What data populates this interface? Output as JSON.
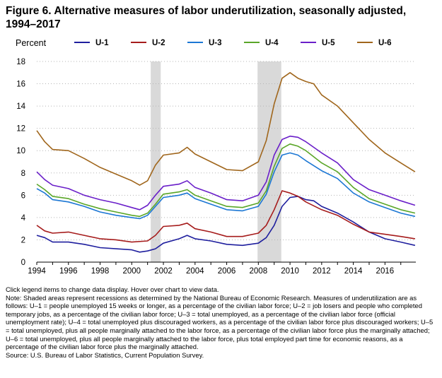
{
  "figure": {
    "title": "Figure 6. Alternative measures of labor underutilization, seasonally adjusted, 1994–2017",
    "ylabel": "Percent"
  },
  "notes": {
    "instructions": "Click legend items to change data display. Hover over chart to view data.",
    "note": "Note: Shaded areas represent recessions as determined by the National Bureau of Economic Research. Measures of underutilization are as follows: U–1 = people unemployed 15 weeks or longer, as a percentage of the civilian labor force; U–2 = job losers and people who completed temporary jobs, as a percentage of the civilian labor force; U–3 = total unemployed, as a percentage of the civilian labor force (official unemployment rate); U–4 = total unemployed plus discouraged workers, as a percentage of the civilian labor force plus discouraged workers; U–5 = total unemployed, plus all people marginally attached to the labor force, as a percentage of the civilian labor force plus the marginally attached; U–6 = total unemployed, plus all people marginally attached to the labor force, plus total employed part time for economic reasons, as a percentage of the civilian labor force plus the marginally attached.",
    "source": "Source: U.S. Bureau of Labor Statistics, Current Population Survey."
  },
  "chart_data": {
    "type": "line",
    "title": "Figure 6. Alternative measures of labor underutilization, seasonally adjusted, 1994–2017",
    "xlabel": "",
    "ylabel": "Percent",
    "xlim": [
      1994,
      2017.95
    ],
    "ylim": [
      0,
      18
    ],
    "yticks": [
      0,
      2,
      4,
      6,
      8,
      10,
      12,
      14,
      16,
      18
    ],
    "xticks": [
      1994,
      1996,
      1998,
      2000,
      2002,
      2004,
      2006,
      2008,
      2010,
      2012,
      2014,
      2016
    ],
    "grid": "horizontal dotted",
    "legend": "top",
    "recessions": [
      [
        2001.2,
        2001.83
      ],
      [
        2007.95,
        2009.45
      ]
    ],
    "series": [
      {
        "name": "U-1",
        "color": "#1f1f9e",
        "points": [
          [
            1994,
            2.4
          ],
          [
            1994.5,
            2.2
          ],
          [
            1995,
            1.8
          ],
          [
            1996,
            1.8
          ],
          [
            1997,
            1.6
          ],
          [
            1998,
            1.3
          ],
          [
            1999,
            1.2
          ],
          [
            2000,
            1.1
          ],
          [
            2000.5,
            0.9
          ],
          [
            2001,
            1.0
          ],
          [
            2001.5,
            1.2
          ],
          [
            2002,
            1.7
          ],
          [
            2003,
            2.1
          ],
          [
            2003.5,
            2.4
          ],
          [
            2004,
            2.1
          ],
          [
            2005,
            1.9
          ],
          [
            2006,
            1.6
          ],
          [
            2007,
            1.5
          ],
          [
            2008,
            1.7
          ],
          [
            2008.5,
            2.2
          ],
          [
            2009,
            3.3
          ],
          [
            2009.5,
            5.0
          ],
          [
            2010,
            5.8
          ],
          [
            2010.5,
            5.9
          ],
          [
            2011,
            5.6
          ],
          [
            2011.5,
            5.5
          ],
          [
            2012,
            5.0
          ],
          [
            2013,
            4.4
          ],
          [
            2014,
            3.6
          ],
          [
            2015,
            2.7
          ],
          [
            2016,
            2.1
          ],
          [
            2017,
            1.8
          ],
          [
            2017.9,
            1.5
          ]
        ]
      },
      {
        "name": "U-2",
        "color": "#a61c1c",
        "points": [
          [
            1994,
            3.3
          ],
          [
            1994.5,
            2.8
          ],
          [
            1995,
            2.6
          ],
          [
            1996,
            2.7
          ],
          [
            1997,
            2.4
          ],
          [
            1998,
            2.1
          ],
          [
            1999,
            2.0
          ],
          [
            2000,
            1.8
          ],
          [
            2001,
            1.9
          ],
          [
            2001.5,
            2.4
          ],
          [
            2002,
            3.2
          ],
          [
            2003,
            3.3
          ],
          [
            2003.5,
            3.5
          ],
          [
            2004,
            3.0
          ],
          [
            2005,
            2.7
          ],
          [
            2006,
            2.3
          ],
          [
            2007,
            2.3
          ],
          [
            2008,
            2.6
          ],
          [
            2008.5,
            3.3
          ],
          [
            2009,
            4.7
          ],
          [
            2009.5,
            6.4
          ],
          [
            2010,
            6.2
          ],
          [
            2010.5,
            5.9
          ],
          [
            2011,
            5.4
          ],
          [
            2012,
            4.7
          ],
          [
            2013,
            4.2
          ],
          [
            2014,
            3.4
          ],
          [
            2015,
            2.7
          ],
          [
            2016,
            2.5
          ],
          [
            2017,
            2.3
          ],
          [
            2017.9,
            2.1
          ]
        ]
      },
      {
        "name": "U-3",
        "color": "#1c77d4",
        "points": [
          [
            1994,
            6.6
          ],
          [
            1994.5,
            6.2
          ],
          [
            1995,
            5.6
          ],
          [
            1996,
            5.4
          ],
          [
            1997,
            5.0
          ],
          [
            1998,
            4.5
          ],
          [
            1999,
            4.2
          ],
          [
            2000,
            4.0
          ],
          [
            2000.5,
            3.9
          ],
          [
            2001,
            4.2
          ],
          [
            2001.5,
            5.0
          ],
          [
            2002,
            5.8
          ],
          [
            2003,
            6.0
          ],
          [
            2003.5,
            6.2
          ],
          [
            2004,
            5.7
          ],
          [
            2005,
            5.2
          ],
          [
            2006,
            4.7
          ],
          [
            2007,
            4.6
          ],
          [
            2008,
            5.0
          ],
          [
            2008.5,
            6.1
          ],
          [
            2009,
            8.1
          ],
          [
            2009.5,
            9.6
          ],
          [
            2010,
            9.8
          ],
          [
            2010.5,
            9.6
          ],
          [
            2011,
            9.1
          ],
          [
            2012,
            8.2
          ],
          [
            2013,
            7.5
          ],
          [
            2014,
            6.2
          ],
          [
            2015,
            5.4
          ],
          [
            2016,
            4.9
          ],
          [
            2017,
            4.4
          ],
          [
            2017.9,
            4.1
          ]
        ]
      },
      {
        "name": "U-4",
        "color": "#5aa628",
        "points": [
          [
            1994,
            7.0
          ],
          [
            1994.5,
            6.5
          ],
          [
            1995,
            5.9
          ],
          [
            1996,
            5.7
          ],
          [
            1997,
            5.2
          ],
          [
            1998,
            4.8
          ],
          [
            1999,
            4.5
          ],
          [
            2000,
            4.2
          ],
          [
            2000.5,
            4.1
          ],
          [
            2001,
            4.4
          ],
          [
            2001.5,
            5.2
          ],
          [
            2002,
            6.1
          ],
          [
            2003,
            6.3
          ],
          [
            2003.5,
            6.5
          ],
          [
            2004,
            6.0
          ],
          [
            2005,
            5.5
          ],
          [
            2006,
            5.0
          ],
          [
            2007,
            4.9
          ],
          [
            2008,
            5.3
          ],
          [
            2008.5,
            6.4
          ],
          [
            2009,
            8.6
          ],
          [
            2009.5,
            10.2
          ],
          [
            2010,
            10.6
          ],
          [
            2010.5,
            10.4
          ],
          [
            2011,
            10.0
          ],
          [
            2012,
            8.9
          ],
          [
            2013,
            8.1
          ],
          [
            2014,
            6.7
          ],
          [
            2015,
            5.7
          ],
          [
            2016,
            5.2
          ],
          [
            2017,
            4.7
          ],
          [
            2017.9,
            4.4
          ]
        ]
      },
      {
        "name": "U-5",
        "color": "#6a1fc9",
        "points": [
          [
            1994,
            8.1
          ],
          [
            1994.5,
            7.4
          ],
          [
            1995,
            6.9
          ],
          [
            1996,
            6.6
          ],
          [
            1997,
            6.0
          ],
          [
            1998,
            5.6
          ],
          [
            1999,
            5.3
          ],
          [
            2000,
            4.9
          ],
          [
            2000.5,
            4.7
          ],
          [
            2001,
            5.1
          ],
          [
            2001.5,
            6.0
          ],
          [
            2002,
            6.8
          ],
          [
            2003,
            7.0
          ],
          [
            2003.5,
            7.3
          ],
          [
            2004,
            6.7
          ],
          [
            2005,
            6.2
          ],
          [
            2006,
            5.6
          ],
          [
            2007,
            5.5
          ],
          [
            2008,
            6.0
          ],
          [
            2008.5,
            7.2
          ],
          [
            2009,
            9.6
          ],
          [
            2009.5,
            11.0
          ],
          [
            2010,
            11.3
          ],
          [
            2010.5,
            11.2
          ],
          [
            2011,
            10.8
          ],
          [
            2012,
            9.8
          ],
          [
            2013,
            8.9
          ],
          [
            2014,
            7.4
          ],
          [
            2015,
            6.5
          ],
          [
            2016,
            6.0
          ],
          [
            2017,
            5.5
          ],
          [
            2017.9,
            5.1
          ]
        ]
      },
      {
        "name": "U-6",
        "color": "#a0661c",
        "points": [
          [
            1994,
            11.8
          ],
          [
            1994.5,
            10.8
          ],
          [
            1995,
            10.1
          ],
          [
            1996,
            10.0
          ],
          [
            1997,
            9.3
          ],
          [
            1998,
            8.5
          ],
          [
            1999,
            7.9
          ],
          [
            2000,
            7.3
          ],
          [
            2000.5,
            6.9
          ],
          [
            2001,
            7.3
          ],
          [
            2001.5,
            8.7
          ],
          [
            2002,
            9.6
          ],
          [
            2003,
            9.8
          ],
          [
            2003.5,
            10.3
          ],
          [
            2004,
            9.7
          ],
          [
            2005,
            9.0
          ],
          [
            2006,
            8.3
          ],
          [
            2007,
            8.2
          ],
          [
            2008,
            9.0
          ],
          [
            2008.5,
            10.9
          ],
          [
            2009,
            14.2
          ],
          [
            2009.5,
            16.5
          ],
          [
            2010,
            17.0
          ],
          [
            2010.5,
            16.5
          ],
          [
            2011,
            16.2
          ],
          [
            2011.5,
            16.0
          ],
          [
            2012,
            15.0
          ],
          [
            2013,
            14.0
          ],
          [
            2014,
            12.5
          ],
          [
            2015,
            11.0
          ],
          [
            2016,
            9.8
          ],
          [
            2017,
            8.9
          ],
          [
            2017.9,
            8.1
          ]
        ]
      }
    ]
  }
}
